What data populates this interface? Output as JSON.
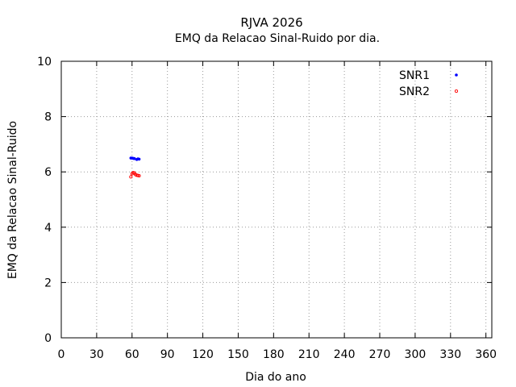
{
  "chart_data": {
    "type": "scatter",
    "title": "RJVA 2026",
    "subtitle": "EMQ da Relacao Sinal-Ruido por dia.",
    "xlabel": "Dia do ano",
    "ylabel": "EMQ da Relacao Sinal-Ruido",
    "xlim": [
      0,
      365
    ],
    "ylim": [
      0,
      10
    ],
    "xticks": [
      0,
      30,
      60,
      90,
      120,
      150,
      180,
      210,
      240,
      270,
      300,
      330,
      360
    ],
    "yticks": [
      0,
      2,
      4,
      6,
      8,
      10
    ],
    "grid": true,
    "legend_position": "top-right",
    "series": [
      {
        "name": "SNR1",
        "color": "#0000ff",
        "marker": "filled-dot",
        "x": [
          59,
          60,
          61,
          62,
          64,
          65,
          66
        ],
        "y": [
          6.5,
          6.5,
          6.49,
          6.48,
          6.45,
          6.47,
          6.46
        ]
      },
      {
        "name": "SNR2",
        "color": "#ff0000",
        "marker": "open-circle",
        "x": [
          59,
          60,
          61,
          62,
          63,
          64,
          65,
          66
        ],
        "y": [
          5.82,
          5.93,
          5.97,
          5.96,
          5.9,
          5.88,
          5.87,
          5.86
        ]
      }
    ]
  }
}
